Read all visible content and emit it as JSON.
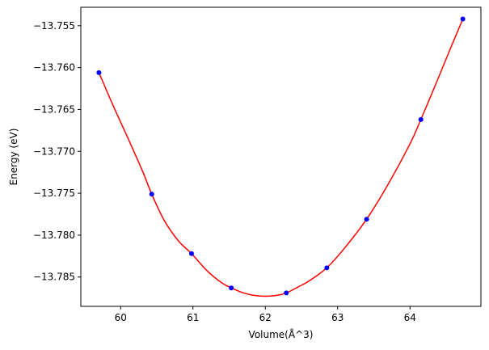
{
  "chart_data": {
    "type": "scatter",
    "title": "",
    "xlabel": "Volume(Å^3)",
    "ylabel": "Energy (eV)",
    "xlim": [
      59.45,
      64.98
    ],
    "ylim": [
      -13.7885,
      -13.7528
    ],
    "xticks": [
      60,
      61,
      62,
      63,
      64
    ],
    "yticks": [
      -13.785,
      -13.78,
      -13.775,
      -13.77,
      -13.765,
      -13.76,
      -13.755
    ],
    "ytick_labels": [
      "−13.785",
      "−13.780",
      "−13.775",
      "−13.770",
      "−13.765",
      "−13.760",
      "−13.755"
    ],
    "grid": false,
    "series": [
      {
        "kind": "fit-curve",
        "color": "#ff0000",
        "x": [
          59.7,
          59.9,
          60.1,
          60.3,
          60.43,
          60.6,
          60.8,
          60.98,
          61.2,
          61.4,
          61.53,
          61.7,
          61.85,
          62.0,
          62.15,
          62.29,
          62.45,
          62.6,
          62.85,
          63.1,
          63.4,
          63.7,
          64.0,
          64.15,
          64.35,
          64.55,
          64.73
        ],
        "values": [
          -13.7606,
          -13.7646,
          -13.7684,
          -13.7723,
          -13.7751,
          -13.7782,
          -13.7807,
          -13.7822,
          -13.7843,
          -13.7857,
          -13.7863,
          -13.7869,
          -13.7872,
          -13.7873,
          -13.7872,
          -13.7869,
          -13.7862,
          -13.7855,
          -13.7839,
          -13.7815,
          -13.7781,
          -13.7739,
          -13.7691,
          -13.7662,
          -13.7621,
          -13.7579,
          -13.7542
        ]
      },
      {
        "kind": "points",
        "color": "#0000ff",
        "x": [
          59.7,
          60.43,
          60.98,
          61.53,
          62.29,
          62.85,
          63.4,
          64.15,
          64.73
        ],
        "values": [
          -13.7606,
          -13.7751,
          -13.7822,
          -13.7863,
          -13.7869,
          -13.7839,
          -13.7781,
          -13.7662,
          -13.7542
        ]
      }
    ]
  }
}
